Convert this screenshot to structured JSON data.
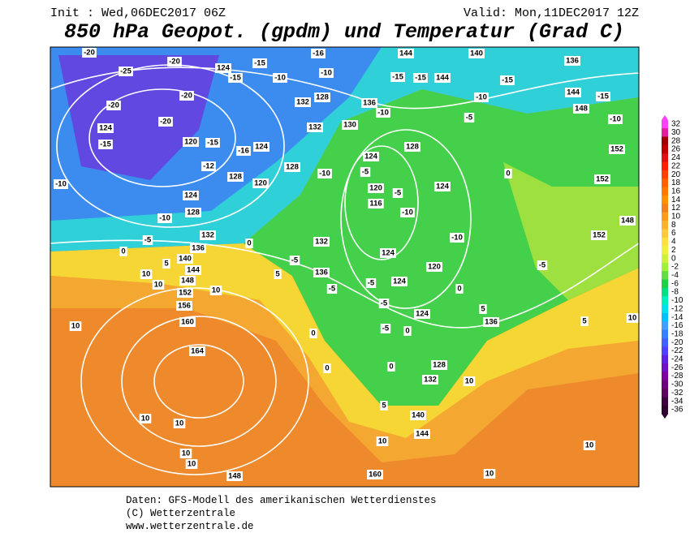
{
  "header": {
    "init": "Init : Wed,06DEC2017 06Z",
    "valid": "Valid: Mon,11DEC2017 12Z",
    "title": "850 hPa Geopot. (gpdm) und Temperatur (Grad C)"
  },
  "colorbar": {
    "labels": [
      32,
      30,
      28,
      26,
      24,
      22,
      20,
      18,
      16,
      14,
      12,
      10,
      8,
      6,
      4,
      2,
      0,
      -2,
      -4,
      -6,
      -8,
      -10,
      -12,
      -14,
      -16,
      -18,
      -20,
      -22,
      -24,
      -26,
      -28,
      -30,
      -32,
      -34,
      -36
    ],
    "colors": [
      "#ff40ff",
      "#e020a0",
      "#a00000",
      "#c00000",
      "#e01010",
      "#ff2000",
      "#ff4000",
      "#ff6000",
      "#ff7800",
      "#ff9000",
      "#f08020",
      "#ff9a20",
      "#ffb030",
      "#ffc840",
      "#ffe040",
      "#f0f040",
      "#d0f040",
      "#a0f040",
      "#60e040",
      "#20d040",
      "#00e080",
      "#00f0c0",
      "#00e0f0",
      "#00c0ff",
      "#40a0ff",
      "#3080ff",
      "#4060ff",
      "#5040ff",
      "#6020e0",
      "#7010c0",
      "#8000a0",
      "#700080",
      "#600060",
      "#400040",
      "#300030"
    ]
  },
  "contour_labels": [
    "-20",
    "-25",
    "-20",
    "124",
    "-15",
    "-15",
    "-10",
    "-16",
    "-10",
    "144",
    "140",
    "136",
    "-15",
    "-15",
    "144",
    "-15",
    "-20",
    "-20",
    "132",
    "128",
    "136",
    "-10",
    "-10",
    "144",
    "-15",
    "148",
    "-10",
    "124",
    "-20",
    "-15",
    "120",
    "-15",
    "-16",
    "124",
    "132",
    "130",
    "-5",
    "128",
    "152",
    "-12",
    "-10",
    "128",
    "120",
    "128",
    "-10",
    "124",
    "-5",
    "120",
    "-5",
    "124",
    "0",
    "152",
    "124",
    "116",
    "-10",
    "148",
    "128",
    "-10",
    "-5",
    "132",
    "0",
    "132",
    "-10",
    "152",
    "0",
    "136",
    "-5",
    "124",
    "120",
    "-5",
    "140",
    "5",
    "144",
    "5",
    "136",
    "10",
    "148",
    "10",
    "152",
    "10",
    "-5",
    "-5",
    "124",
    "0",
    "156",
    "-5",
    "124",
    "5",
    "160",
    "10",
    "0",
    "-5",
    "0",
    "136",
    "5",
    "10",
    "164",
    "0",
    "0",
    "128",
    "132",
    "10",
    "5",
    "140",
    "144",
    "10",
    "10",
    "10",
    "10",
    "10",
    "10",
    "148",
    "160",
    "10"
  ],
  "footer": [
    "Daten: GFS-Modell des amerikanischen Wetterdienstes",
    "(C) Wetterzentrale",
    "www.wetterzentrale.de"
  ]
}
